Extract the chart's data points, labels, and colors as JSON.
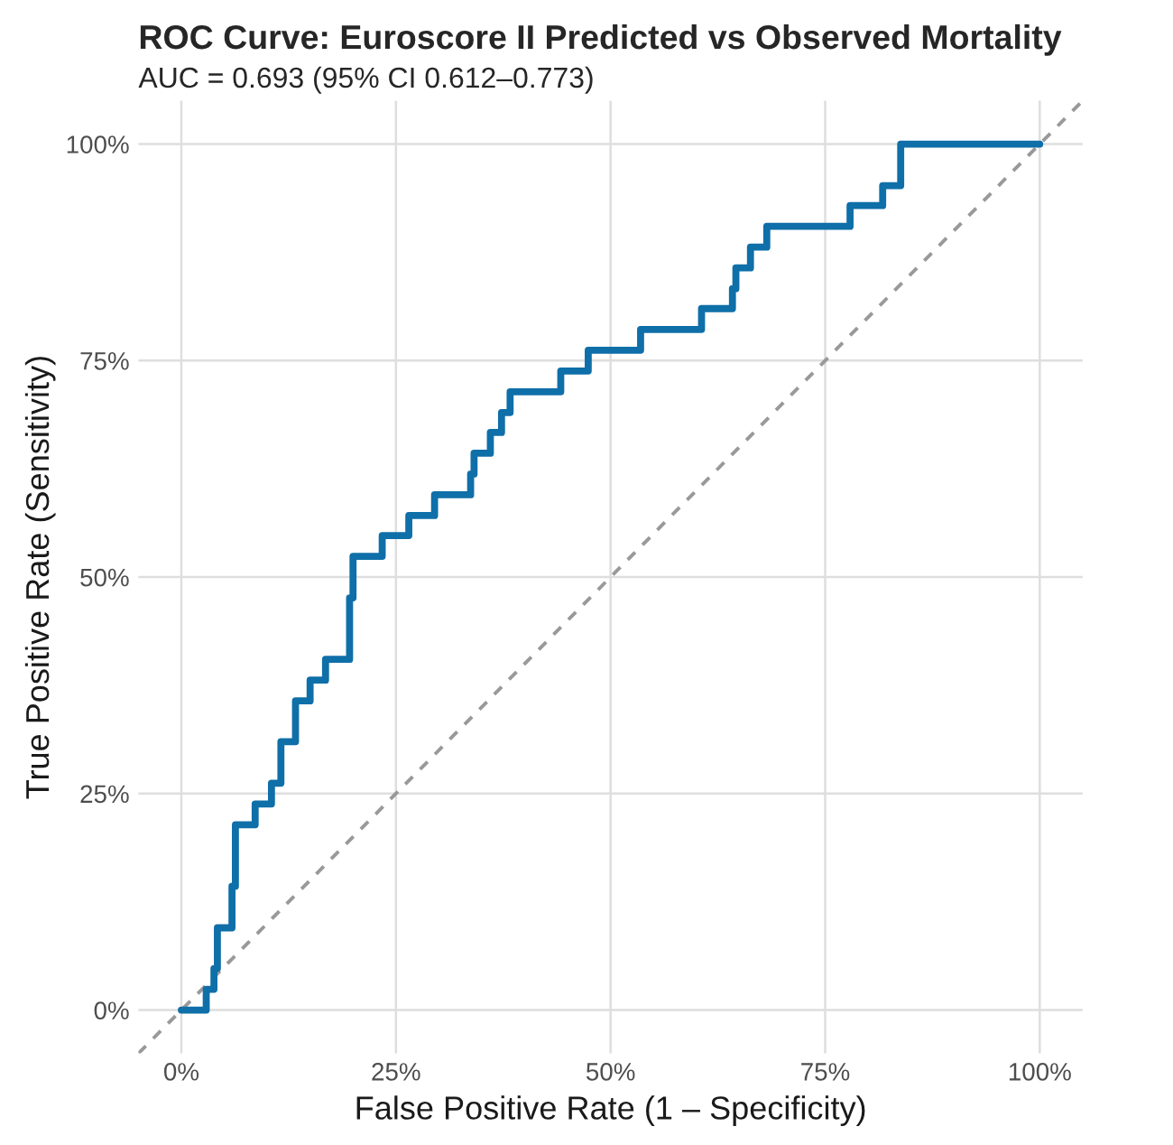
{
  "chart_data": {
    "type": "line",
    "title": "ROC Curve: Euroscore II Predicted vs Observed Mortality",
    "subtitle": "AUC = 0.693 (95% CI 0.612–0.773)",
    "xlabel": "False Positive Rate (1 – Specificity)",
    "ylabel": "True Positive Rate (Sensitivity)",
    "series": [
      {
        "color": "#999999",
        "line_style": "dashed",
        "x": [
          -5,
          105
        ],
        "values": [
          -5,
          105
        ]
      },
      {
        "color": "#0f6fa8",
        "line_style": "solid",
        "x": [
          0,
          2.9,
          2.9,
          3.8,
          3.8,
          4.2,
          4.2,
          5.9,
          5.9,
          6.3,
          6.3,
          8.6,
          8.6,
          10.5,
          10.5,
          11.6,
          11.6,
          13.3,
          13.3,
          15,
          15,
          16.8,
          16.8,
          19.6,
          19.6,
          20,
          20,
          23.4,
          23.4,
          26.5,
          26.5,
          29.5,
          29.5,
          33.7,
          33.7,
          34.1,
          34.1,
          36,
          36,
          37.3,
          37.3,
          38.3,
          38.3,
          44.2,
          44.2,
          47.4,
          47.4,
          53.5,
          53.5,
          60.6,
          60.6,
          64.2,
          64.2,
          64.6,
          64.6,
          66.3,
          66.3,
          68.2,
          68.2,
          77.9,
          77.9,
          81.7,
          81.7,
          83.8,
          83.8,
          100
        ],
        "values": [
          0,
          0,
          2.4,
          2.4,
          4.8,
          4.8,
          9.5,
          9.5,
          14.3,
          14.3,
          21.4,
          21.4,
          23.8,
          23.8,
          26.2,
          26.2,
          31,
          31,
          35.7,
          35.7,
          38.1,
          38.1,
          40.5,
          40.5,
          47.6,
          47.6,
          52.4,
          52.4,
          54.8,
          54.8,
          57.1,
          57.1,
          59.5,
          59.5,
          61.9,
          61.9,
          64.3,
          64.3,
          66.7,
          66.7,
          69,
          69,
          71.4,
          71.4,
          73.8,
          73.8,
          76.2,
          76.2,
          78.6,
          78.6,
          81,
          81,
          83.3,
          83.3,
          85.7,
          85.7,
          88.1,
          88.1,
          90.5,
          90.5,
          92.9,
          92.9,
          95.2,
          95.2,
          100,
          100
        ]
      }
    ],
    "xlim": [
      -5,
      105
    ],
    "ylim": [
      -5,
      105
    ],
    "xticks": [
      {
        "value": 0,
        "label": "0%"
      },
      {
        "value": 25,
        "label": "25%"
      },
      {
        "value": 50,
        "label": "50%"
      },
      {
        "value": 75,
        "label": "75%"
      },
      {
        "value": 100,
        "label": "100%"
      }
    ],
    "yticks": [
      {
        "value": 0,
        "label": "0%"
      },
      {
        "value": 25,
        "label": "25%"
      },
      {
        "value": 50,
        "label": "50%"
      },
      {
        "value": 75,
        "label": "75%"
      },
      {
        "value": 100,
        "label": "100%"
      }
    ],
    "grid": true
  }
}
